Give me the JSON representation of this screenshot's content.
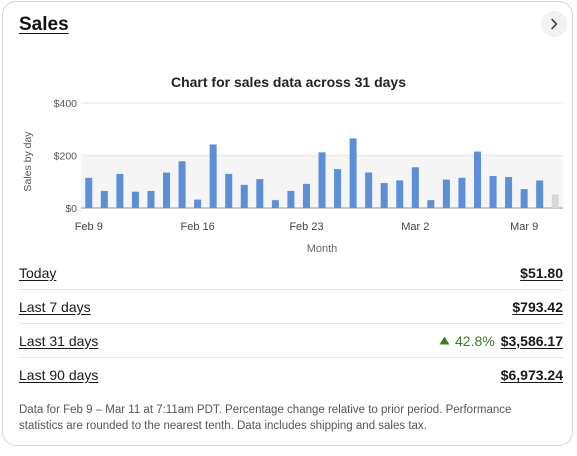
{
  "header": {
    "title": "Sales"
  },
  "chart_data": {
    "type": "bar",
    "title": "Chart for sales data across 31 days",
    "xlabel": "Month",
    "ylabel": "Sales by day",
    "ylim": [
      0,
      400
    ],
    "y_ticks": [
      "$0",
      "$200",
      "$400"
    ],
    "y_tick_values": [
      0,
      200,
      400
    ],
    "x_tick_labels": [
      "Feb 9",
      "Feb 16",
      "Feb 23",
      "Mar 2",
      "Mar 9"
    ],
    "x_tick_indices": [
      0,
      7,
      14,
      21,
      28
    ],
    "grid": true,
    "legend": "none",
    "categories": [
      "Feb 9",
      "Feb 10",
      "Feb 11",
      "Feb 12",
      "Feb 13",
      "Feb 14",
      "Feb 15",
      "Feb 16",
      "Feb 17",
      "Feb 18",
      "Feb 19",
      "Feb 20",
      "Feb 21",
      "Feb 22",
      "Feb 23",
      "Feb 24",
      "Feb 25",
      "Feb 26",
      "Feb 27",
      "Feb 28",
      "Mar 1",
      "Mar 2",
      "Mar 3",
      "Mar 4",
      "Mar 5",
      "Mar 6",
      "Mar 7",
      "Mar 8",
      "Mar 9",
      "Mar 10",
      "Mar 11"
    ],
    "values": [
      115,
      65,
      130,
      62,
      65,
      135,
      178,
      32,
      242,
      130,
      88,
      110,
      30,
      65,
      92,
      212,
      148,
      265,
      135,
      95,
      105,
      155,
      30,
      108,
      115,
      215,
      122,
      118,
      72,
      105,
      52
    ],
    "bar_color": "#5b8fd8",
    "highlight_bar_color": "#d7d7d7"
  },
  "summary": {
    "rows": [
      {
        "label": "Today",
        "value": "$51.80"
      },
      {
        "label": "Last 7 days",
        "value": "$793.42"
      },
      {
        "label": "Last 31 days",
        "value": "$3,586.17",
        "change": "42.8%"
      },
      {
        "label": "Last 90 days",
        "value": "$6,973.24"
      }
    ]
  },
  "footnote": "Data for Feb 9 – Mar 11 at 7:11am PDT. Percentage change relative to prior period. Performance statistics are rounded to the nearest tenth. Data includes shipping and sales tax.",
  "colors": {
    "positive": "#3a7d1f",
    "accent": "#5b8fd8"
  }
}
